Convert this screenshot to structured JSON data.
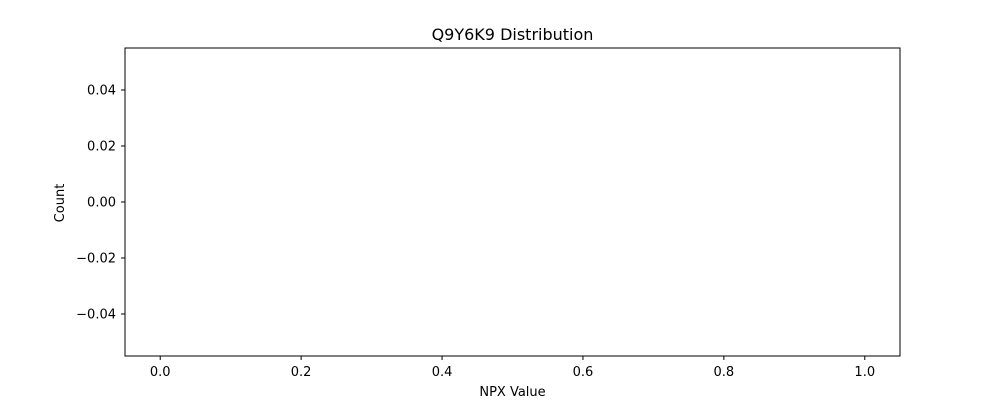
{
  "chart_data": {
    "type": "bar",
    "title": "Q9Y6K9 Distribution",
    "xlabel": "NPX Value",
    "ylabel": "Count",
    "xlim": [
      -0.05,
      1.05
    ],
    "ylim": [
      -0.055,
      0.055
    ],
    "x_ticks": [
      {
        "value": 0.0,
        "label": "0.0"
      },
      {
        "value": 0.2,
        "label": "0.2"
      },
      {
        "value": 0.4,
        "label": "0.4"
      },
      {
        "value": 0.6,
        "label": "0.6"
      },
      {
        "value": 0.8,
        "label": "0.8"
      },
      {
        "value": 1.0,
        "label": "1.0"
      }
    ],
    "y_ticks": [
      {
        "value": 0.04,
        "label": "0.04"
      },
      {
        "value": 0.02,
        "label": "0.02"
      },
      {
        "value": 0.0,
        "label": "0.00"
      },
      {
        "value": -0.02,
        "label": "−0.02"
      },
      {
        "value": -0.04,
        "label": "−0.04"
      }
    ],
    "series": [],
    "grid": false,
    "legend": "none"
  }
}
